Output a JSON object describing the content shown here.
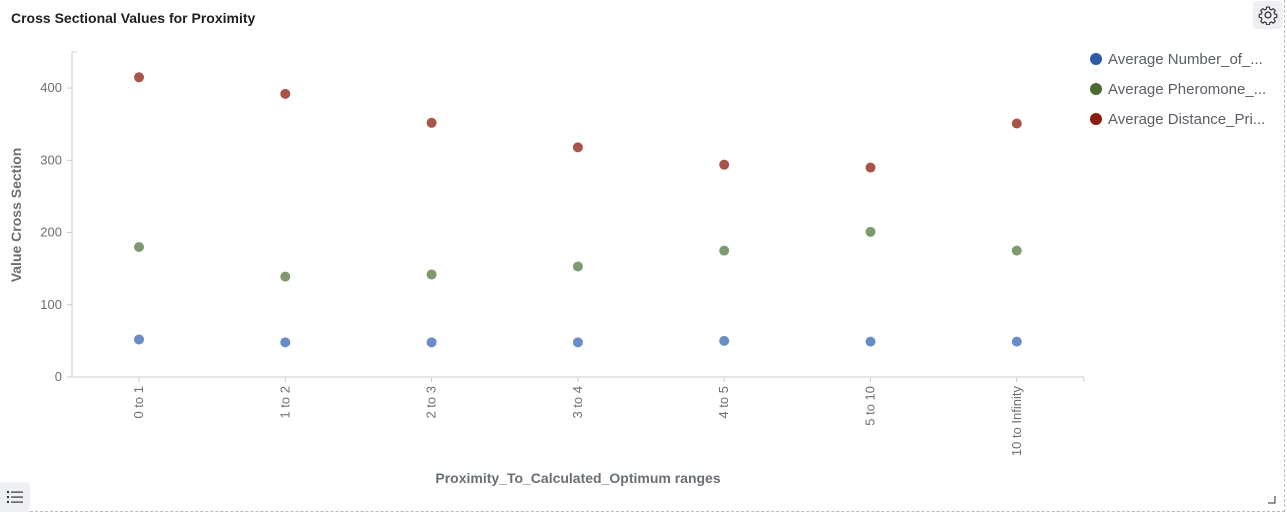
{
  "panel": {
    "title": "Cross Sectional Values for Proximity"
  },
  "icons": {
    "settings": "gear-icon",
    "list": "list-icon",
    "resize": "resize-handle-icon"
  },
  "chart_data": {
    "type": "scatter",
    "title": "Cross Sectional Values for Proximity",
    "xlabel": "Proximity_To_Calculated_Optimum ranges",
    "ylabel": "Value Cross Section",
    "categories": [
      "0 to 1",
      "1 to 2",
      "2 to 3",
      "3 to 4",
      "4 to 5",
      "5 to 10",
      "10 to Infinity"
    ],
    "ylim": [
      0,
      450
    ],
    "yticks": [
      0,
      100,
      200,
      300,
      400
    ],
    "grid": false,
    "legend": "top-right",
    "series": [
      {
        "name": "Average Number_of_...",
        "color": "#2e5aa8",
        "point_color": "#6a8cc6",
        "values": [
          52,
          48,
          48,
          48,
          50,
          49,
          49
        ]
      },
      {
        "name": "Average Pheromone_...",
        "color": "#4b6b33",
        "point_color": "#7f9a6e",
        "values": [
          180,
          139,
          142,
          153,
          175,
          201,
          175
        ]
      },
      {
        "name": "Average Distance_Pri...",
        "color": "#8a1c10",
        "point_color": "#a85448",
        "values": [
          415,
          392,
          352,
          318,
          294,
          290,
          351
        ]
      }
    ]
  }
}
